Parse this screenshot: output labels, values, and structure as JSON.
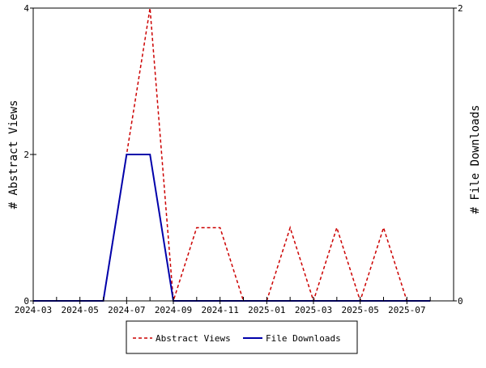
{
  "chart_data": {
    "type": "line",
    "x_ticks": [
      "2024-03",
      "2024-05",
      "2024-07",
      "2024-09",
      "2024-11",
      "2025-01",
      "2025-03",
      "2025-05",
      "2025-07"
    ],
    "x_domain": [
      "2024-03",
      "2025-09"
    ],
    "y_left_label": "# Abstract Views",
    "y_right_label": "# File Downloads",
    "y_left_ticks": [
      0,
      2,
      4
    ],
    "y_right_ticks": [
      0,
      2
    ],
    "y_left_range": [
      0,
      4
    ],
    "y_right_range": [
      0,
      2
    ],
    "series": [
      {
        "name": "Abstract Views",
        "axis": "left",
        "color": "#cc0000",
        "dash": "dashed",
        "x": [
          "2024-03",
          "2024-04",
          "2024-05",
          "2024-06",
          "2024-07",
          "2024-08",
          "2024-09",
          "2024-10",
          "2024-11",
          "2024-12",
          "2025-01",
          "2025-02",
          "2025-03",
          "2025-04",
          "2025-05",
          "2025-06",
          "2025-07",
          "2025-08"
        ],
        "values": [
          0,
          0,
          0,
          0,
          2,
          4,
          0,
          1,
          1,
          0,
          0,
          1,
          0,
          1,
          0,
          1,
          0,
          0
        ]
      },
      {
        "name": "File Downloads",
        "axis": "right",
        "color": "#0000aa",
        "dash": "solid",
        "x": [
          "2024-03",
          "2024-04",
          "2024-05",
          "2024-06",
          "2024-07",
          "2024-08",
          "2024-09",
          "2024-10",
          "2024-11",
          "2024-12",
          "2025-01",
          "2025-02",
          "2025-03",
          "2025-04",
          "2025-05",
          "2025-06",
          "2025-07",
          "2025-08"
        ],
        "values": [
          0,
          0,
          0,
          0,
          1,
          1,
          0,
          0,
          0,
          0,
          0,
          0,
          0,
          0,
          0,
          0,
          0,
          0
        ]
      }
    ],
    "legend": {
      "placement": "bottom",
      "items": [
        "Abstract Views",
        "File Downloads"
      ]
    },
    "grid": false
  }
}
